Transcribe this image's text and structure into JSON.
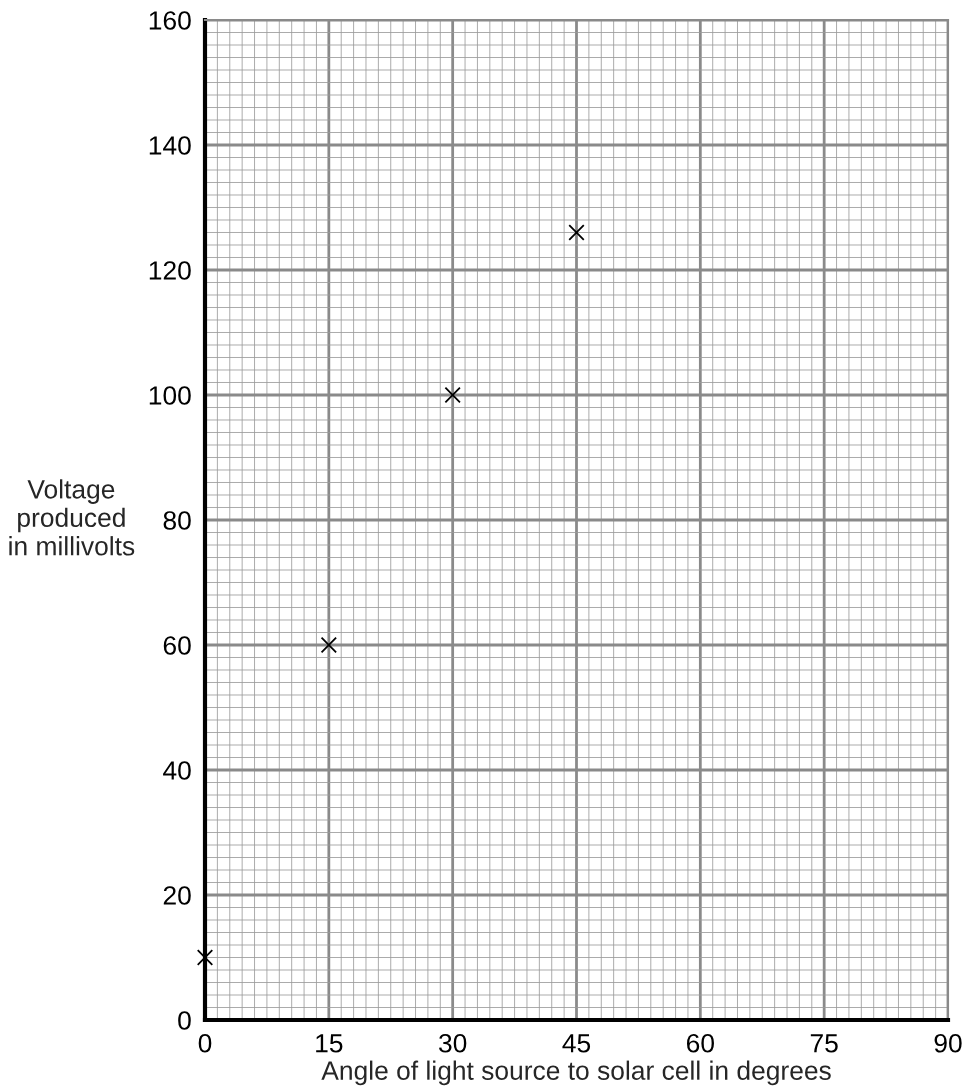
{
  "chart_data": {
    "type": "scatter",
    "xlabel": "Angle of light source to solar cell in degrees",
    "ylabel": "Voltage\nproduced\nin millivolts",
    "x": [
      0,
      15,
      30,
      45
    ],
    "series": [
      {
        "color": "#000000",
        "values": [
          10,
          60,
          100,
          126
        ]
      }
    ],
    "marker": "cross",
    "xlim": [
      0,
      90
    ],
    "xticks": [
      0,
      15,
      30,
      45,
      60,
      75,
      90
    ],
    "ylim": [
      0,
      160
    ],
    "yticks": [
      0,
      20,
      40,
      60,
      80,
      100,
      120,
      140,
      160
    ],
    "grid": true
  }
}
